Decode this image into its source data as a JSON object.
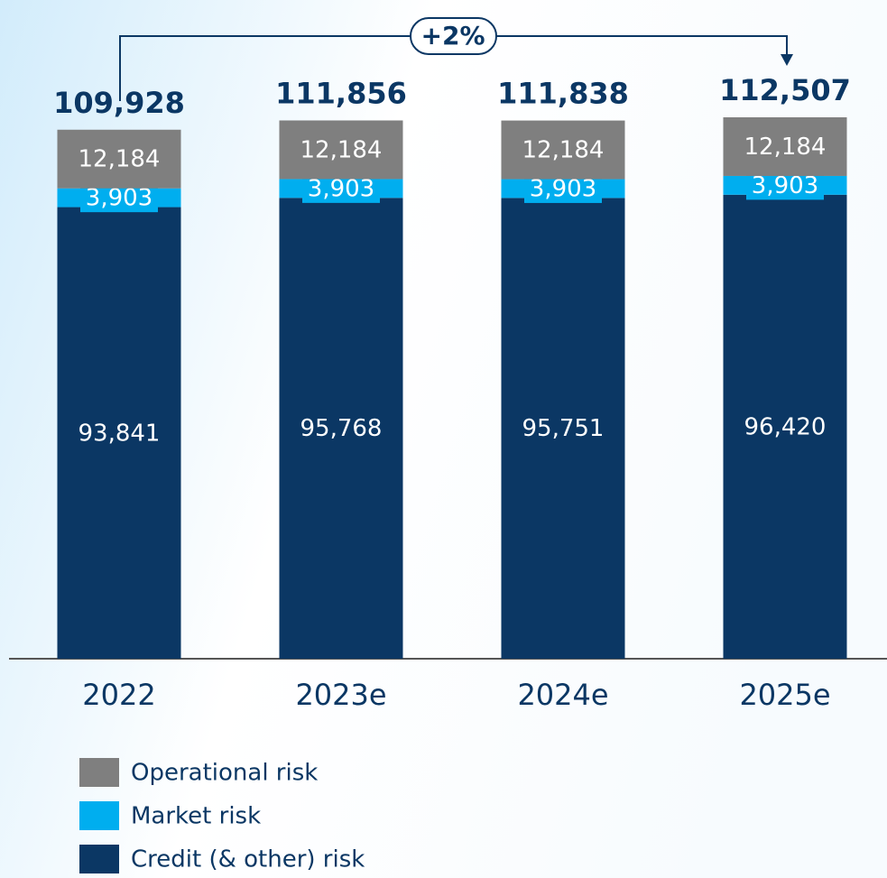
{
  "chart_data": {
    "type": "stacked_bar",
    "categories": [
      "2022",
      "2023e",
      "2024e",
      "2025e"
    ],
    "series": [
      {
        "name": "Operational risk",
        "color": "#7f7f7f",
        "values": [
          12184,
          12184,
          12184,
          12184
        ],
        "value_labels": [
          "12,184",
          "12,184",
          "12,184",
          "12,184"
        ]
      },
      {
        "name": "Market risk",
        "color": "#00aeef",
        "values": [
          3903,
          3903,
          3903,
          3903
        ],
        "value_labels": [
          "3,903",
          "3,903",
          "3,903",
          "3,903"
        ]
      },
      {
        "name": "Credit (& other) risk",
        "color": "#0b3764",
        "values": [
          93841,
          95768,
          95751,
          96420
        ],
        "value_labels": [
          "93,841",
          "95,768",
          "95,751",
          "96,420"
        ]
      }
    ],
    "totals": [
      109928,
      111856,
      111838,
      112507
    ],
    "total_labels": [
      "109,928",
      "111,856",
      "111,838",
      "112,507"
    ],
    "annotation": "+2%"
  }
}
